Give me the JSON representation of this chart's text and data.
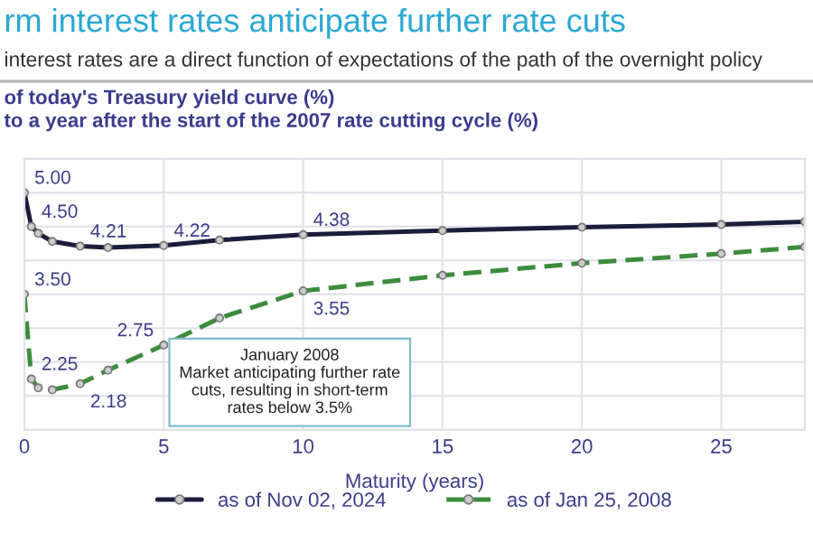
{
  "chart_data": {
    "type": "line",
    "title": "rm interest rates anticipate further rate cuts",
    "subtitle": "interest rates are a direct function of expectations of the path of the overnight policy",
    "annotations": [
      "of today's Treasury yield curve (%)\nto a year after the start of the 2007 rate cutting cycle (%)",
      "January 2008\nMarket anticipating further rate\ncuts, resulting in short-term\nrates below 3.5%"
    ],
    "xlabel": "Maturity (years)",
    "xlim": [
      0,
      28
    ],
    "xticks": [
      0,
      5,
      10,
      15,
      20,
      25
    ],
    "ylim": [
      1.5,
      5.5
    ],
    "yticks": [
      {
        "value": 1.5,
        "label": null
      },
      {
        "value": 2.0,
        "label": null
      },
      {
        "value": 2.5,
        "label": null
      },
      {
        "value": 3.0,
        "label": null
      },
      {
        "value": 3.5,
        "label": null
      },
      {
        "value": 4.0,
        "label": null
      },
      {
        "value": 4.5,
        "label": null
      },
      {
        "value": 5.0,
        "label": null
      },
      {
        "value": 5.5,
        "label": null
      }
    ],
    "tick_labels": "x",
    "grid": true,
    "legend": "bottom",
    "marker": "circle",
    "series": [
      {
        "name": "as of Nov 02, 2024",
        "color": "#1c1c3c",
        "line_style": "solid",
        "x": [
          0,
          0.25,
          0.5,
          1,
          2,
          3,
          5,
          7,
          10,
          15,
          20,
          25,
          28
        ],
        "values": [
          5.0,
          4.5,
          4.4,
          4.28,
          4.21,
          4.19,
          4.22,
          4.3,
          4.38,
          4.44,
          4.49,
          4.53,
          4.57
        ],
        "value_labels": [
          "5.00",
          "4.50",
          null,
          null,
          "4.21",
          null,
          "4.22",
          null,
          "4.38",
          null,
          null,
          null,
          null
        ]
      },
      {
        "name": "as of Jan 25, 2008",
        "color": "#3c8c3c",
        "line_style": "dashed",
        "x": [
          0,
          0.25,
          0.5,
          1,
          2,
          3,
          5,
          7,
          10,
          15,
          20,
          25,
          28
        ],
        "values": [
          3.5,
          2.25,
          2.12,
          2.09,
          2.18,
          2.38,
          2.75,
          3.15,
          3.55,
          3.78,
          3.96,
          4.1,
          4.2
        ],
        "value_labels": [
          "3.50",
          "2.25",
          null,
          null,
          "2.18",
          null,
          "2.75",
          null,
          "3.55",
          null,
          null,
          null,
          null
        ]
      }
    ]
  }
}
